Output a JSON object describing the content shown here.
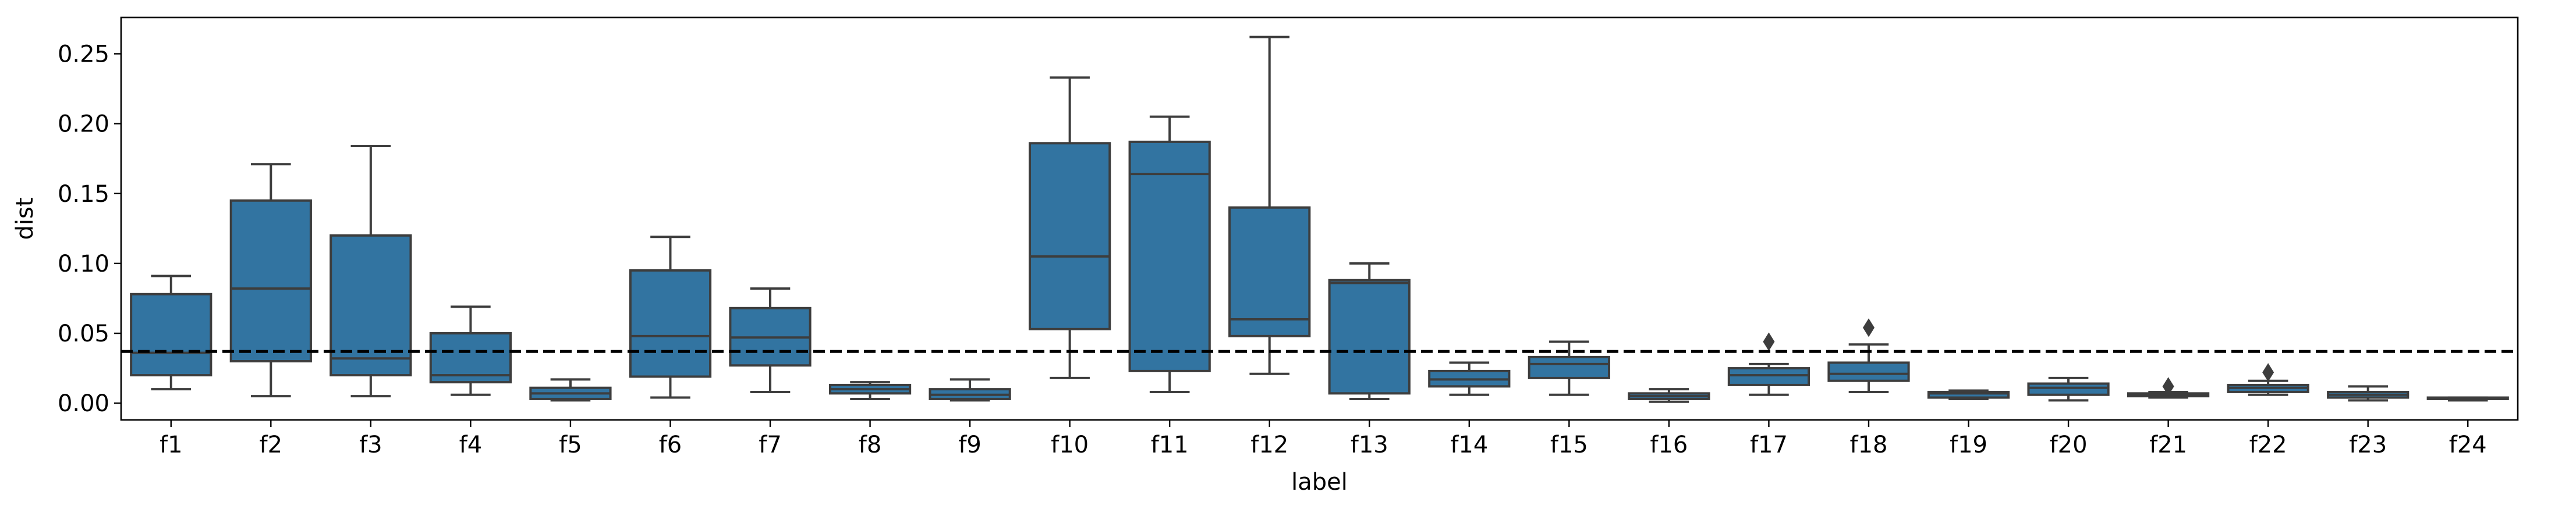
{
  "chart_data": {
    "type": "box",
    "title": "",
    "xlabel": "label",
    "ylabel": "dist",
    "ylim": [
      -0.012,
      0.276
    ],
    "yticks": [
      {
        "value": 0.0,
        "label": "0.00"
      },
      {
        "value": 0.05,
        "label": "0.05"
      },
      {
        "value": 0.1,
        "label": "0.10"
      },
      {
        "value": 0.15,
        "label": "0.15"
      },
      {
        "value": 0.2,
        "label": "0.20"
      },
      {
        "value": 0.25,
        "label": "0.25"
      }
    ],
    "reference_line": {
      "y": 0.037,
      "style": "dashed"
    },
    "grid": false,
    "box_color": "#3274a1",
    "line_color": "#3d3d3d",
    "categories": [
      "f1",
      "f2",
      "f3",
      "f4",
      "f5",
      "f6",
      "f7",
      "f8",
      "f9",
      "f10",
      "f11",
      "f12",
      "f13",
      "f14",
      "f15",
      "f16",
      "f17",
      "f18",
      "f19",
      "f20",
      "f21",
      "f22",
      "f23",
      "f24"
    ],
    "boxes": [
      {
        "label": "f1",
        "whislo": 0.01,
        "q1": 0.02,
        "med": 0.036,
        "q3": 0.078,
        "whishi": 0.091,
        "fliers": []
      },
      {
        "label": "f2",
        "whislo": 0.005,
        "q1": 0.03,
        "med": 0.082,
        "q3": 0.145,
        "whishi": 0.171,
        "fliers": []
      },
      {
        "label": "f3",
        "whislo": 0.005,
        "q1": 0.02,
        "med": 0.032,
        "q3": 0.12,
        "whishi": 0.184,
        "fliers": []
      },
      {
        "label": "f4",
        "whislo": 0.006,
        "q1": 0.015,
        "med": 0.02,
        "q3": 0.05,
        "whishi": 0.069,
        "fliers": []
      },
      {
        "label": "f5",
        "whislo": 0.002,
        "q1": 0.003,
        "med": 0.007,
        "q3": 0.011,
        "whishi": 0.017,
        "fliers": []
      },
      {
        "label": "f6",
        "whislo": 0.004,
        "q1": 0.019,
        "med": 0.048,
        "q3": 0.095,
        "whishi": 0.119,
        "fliers": []
      },
      {
        "label": "f7",
        "whislo": 0.008,
        "q1": 0.027,
        "med": 0.047,
        "q3": 0.068,
        "whishi": 0.082,
        "fliers": []
      },
      {
        "label": "f8",
        "whislo": 0.003,
        "q1": 0.007,
        "med": 0.01,
        "q3": 0.013,
        "whishi": 0.015,
        "fliers": []
      },
      {
        "label": "f9",
        "whislo": 0.002,
        "q1": 0.003,
        "med": 0.006,
        "q3": 0.01,
        "whishi": 0.017,
        "fliers": []
      },
      {
        "label": "f10",
        "whislo": 0.018,
        "q1": 0.053,
        "med": 0.105,
        "q3": 0.186,
        "whishi": 0.233,
        "fliers": []
      },
      {
        "label": "f11",
        "whislo": 0.008,
        "q1": 0.023,
        "med": 0.164,
        "q3": 0.187,
        "whishi": 0.205,
        "fliers": []
      },
      {
        "label": "f12",
        "whislo": 0.021,
        "q1": 0.048,
        "med": 0.06,
        "q3": 0.14,
        "whishi": 0.262,
        "fliers": []
      },
      {
        "label": "f13",
        "whislo": 0.003,
        "q1": 0.007,
        "med": 0.086,
        "q3": 0.088,
        "whishi": 0.1,
        "fliers": []
      },
      {
        "label": "f14",
        "whislo": 0.006,
        "q1": 0.012,
        "med": 0.017,
        "q3": 0.023,
        "whishi": 0.029,
        "fliers": []
      },
      {
        "label": "f15",
        "whislo": 0.006,
        "q1": 0.018,
        "med": 0.028,
        "q3": 0.033,
        "whishi": 0.044,
        "fliers": []
      },
      {
        "label": "f16",
        "whislo": 0.001,
        "q1": 0.003,
        "med": 0.005,
        "q3": 0.007,
        "whishi": 0.01,
        "fliers": []
      },
      {
        "label": "f17",
        "whislo": 0.006,
        "q1": 0.013,
        "med": 0.02,
        "q3": 0.025,
        "whishi": 0.028,
        "fliers": [
          0.044
        ]
      },
      {
        "label": "f18",
        "whislo": 0.008,
        "q1": 0.016,
        "med": 0.021,
        "q3": 0.029,
        "whishi": 0.042,
        "fliers": [
          0.054
        ]
      },
      {
        "label": "f19",
        "whislo": 0.003,
        "q1": 0.004,
        "med": 0.007,
        "q3": 0.008,
        "whishi": 0.009,
        "fliers": []
      },
      {
        "label": "f20",
        "whislo": 0.002,
        "q1": 0.006,
        "med": 0.011,
        "q3": 0.014,
        "whishi": 0.018,
        "fliers": []
      },
      {
        "label": "f21",
        "whislo": 0.004,
        "q1": 0.005,
        "med": 0.006,
        "q3": 0.007,
        "whishi": 0.008,
        "fliers": [
          0.012
        ]
      },
      {
        "label": "f22",
        "whislo": 0.006,
        "q1": 0.008,
        "med": 0.011,
        "q3": 0.013,
        "whishi": 0.016,
        "fliers": [
          0.022
        ]
      },
      {
        "label": "f23",
        "whislo": 0.002,
        "q1": 0.004,
        "med": 0.006,
        "q3": 0.008,
        "whishi": 0.012,
        "fliers": []
      },
      {
        "label": "f24",
        "whislo": 0.002,
        "q1": 0.003,
        "med": 0.003,
        "q3": 0.004,
        "whishi": 0.004,
        "fliers": []
      }
    ]
  }
}
